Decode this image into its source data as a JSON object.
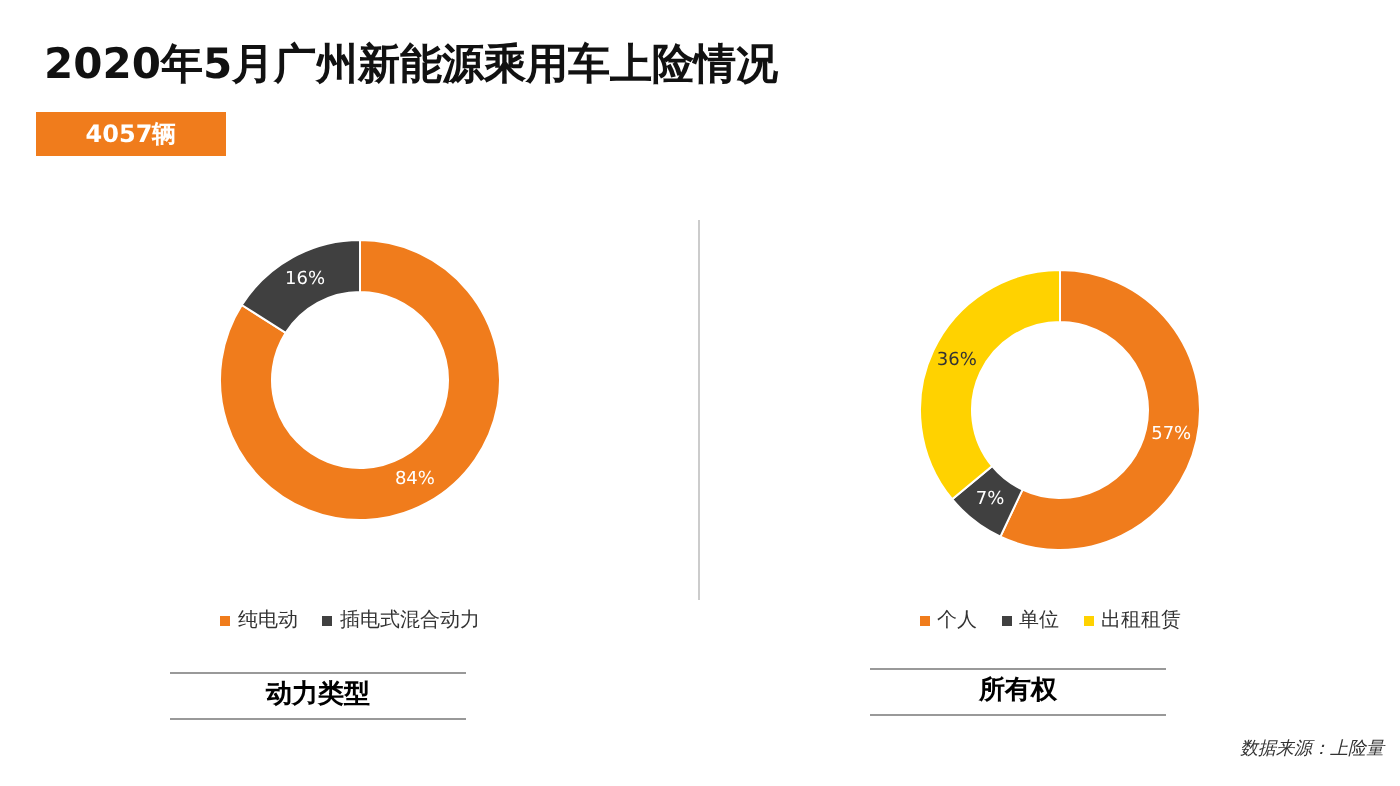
{
  "chart_data": [
    {
      "type": "donut",
      "title": "2020年5月广州新能源乘用车上险情况",
      "subtitle": "4057辆",
      "xlabel": "动力类型",
      "categories": [
        "纯电动",
        "插电式混合动力"
      ],
      "values": [
        84,
        16
      ],
      "colors": [
        "#f07c1c",
        "#404040"
      ],
      "value_labels": [
        "84%",
        "16%"
      ],
      "legend": "bottom"
    },
    {
      "type": "donut",
      "xlabel": "所有权",
      "categories": [
        "个人",
        "单位",
        "出租租赁"
      ],
      "values": [
        57,
        7,
        36
      ],
      "colors": [
        "#f07c1c",
        "#404040",
        "#ffd200"
      ],
      "value_labels": [
        "57%",
        "7%",
        "36%"
      ],
      "legend": "bottom",
      "annotations": [
        "数据来源：上险量"
      ]
    }
  ]
}
